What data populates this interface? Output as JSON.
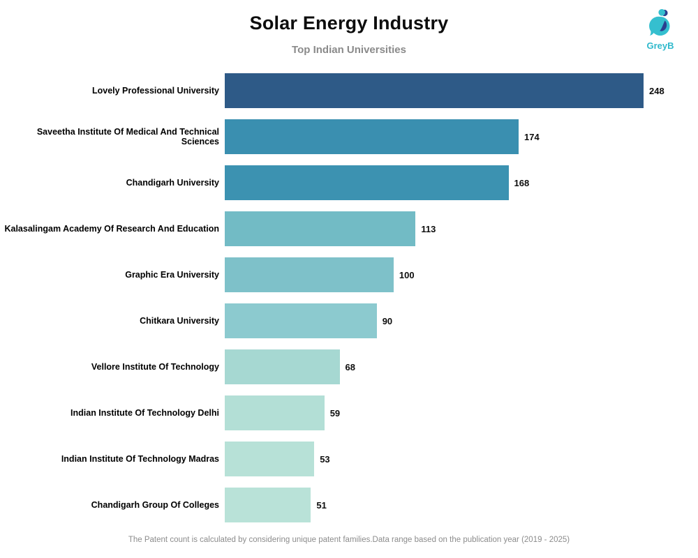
{
  "header": {
    "title": "Solar Energy Industry",
    "subtitle": "Top Indian Universities",
    "logo_text": "GreyB"
  },
  "brand": {
    "teal": "#35bfcf",
    "navy": "#2b3f8f"
  },
  "footer": {
    "note": "The Patent count is calculated by considering unique patent families.Data range based on the publication year (2019 - 2025)"
  },
  "chart_data": {
    "type": "bar",
    "orientation": "horizontal",
    "title": "Solar Energy Industry",
    "subtitle": "Top Indian Universities",
    "xlabel": "",
    "ylabel": "",
    "xlim": [
      0,
      260
    ],
    "grid": false,
    "legend": false,
    "value_label_position": "end-of-bar",
    "categories": [
      "Lovely Professional University",
      "Saveetha Institute Of Medical And Technical Sciences",
      "Chandigarh University",
      "Kalasalingam Academy Of Research And Education",
      "Graphic Era University",
      "Chitkara University",
      "Vellore Institute Of Technology",
      "Indian Institute Of Technology Delhi",
      "Indian Institute Of Technology Madras",
      "Chandigarh Group Of Colleges"
    ],
    "values": [
      248,
      174,
      168,
      113,
      100,
      90,
      68,
      59,
      53,
      51
    ],
    "bar_colors": [
      "#2e5a87",
      "#3a8fb0",
      "#3c92b1",
      "#72bbc5",
      "#7ec1c9",
      "#8ccacf",
      "#a6d8d2",
      "#b3dfd6",
      "#b7e1d7",
      "#b9e2d8"
    ]
  }
}
